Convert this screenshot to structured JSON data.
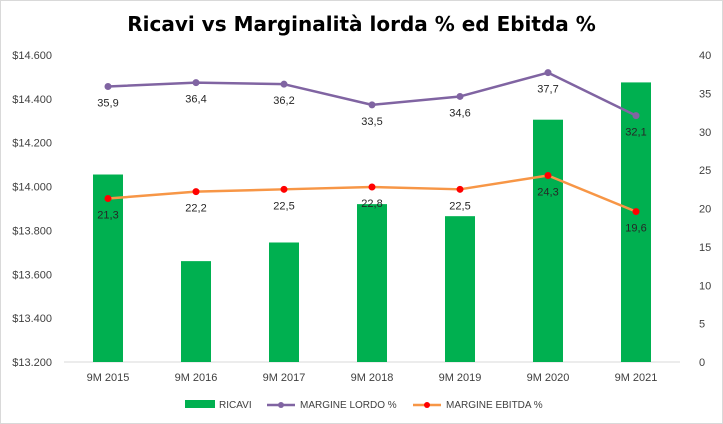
{
  "chart_data": {
    "type": "bar",
    "title": "Ricavi vs Marginalità lorda % ed Ebitda %",
    "categories": [
      "9M 2015",
      "9M 2016",
      "9M 2017",
      "9M 2018",
      "9M 2019",
      "9M 2020",
      "9M 2021"
    ],
    "primary_axis": {
      "ylim": [
        13200,
        14600
      ],
      "ticks": [
        {
          "value": 13200,
          "label": "$13.200"
        },
        {
          "value": 13400,
          "label": "$13.400"
        },
        {
          "value": 13600,
          "label": "$13.600"
        },
        {
          "value": 13800,
          "label": "$13.800"
        },
        {
          "value": 14000,
          "label": "$14.000"
        },
        {
          "value": 14200,
          "label": "$14.200"
        },
        {
          "value": 14400,
          "label": "$14.400"
        },
        {
          "value": 14600,
          "label": "$14.600"
        }
      ]
    },
    "secondary_axis": {
      "ylim": [
        0,
        40
      ],
      "ticks": [
        {
          "value": 0,
          "label": "0"
        },
        {
          "value": 5,
          "label": "5"
        },
        {
          "value": 10,
          "label": "10"
        },
        {
          "value": 15,
          "label": "15"
        },
        {
          "value": 20,
          "label": "20"
        },
        {
          "value": 25,
          "label": "25"
        },
        {
          "value": 30,
          "label": "30"
        },
        {
          "value": 35,
          "label": "35"
        },
        {
          "value": 40,
          "label": "40"
        }
      ]
    },
    "series": [
      {
        "name": "RICAVI",
        "type": "bar",
        "axis": "primary",
        "color": "#00b050",
        "values": [
          14055,
          13660,
          13745,
          13920,
          13865,
          14305,
          14475
        ]
      },
      {
        "name": "MARGINE LORDO %",
        "type": "line",
        "axis": "secondary",
        "color": "#8064a2",
        "values": [
          35.9,
          36.4,
          36.2,
          33.5,
          34.6,
          37.7,
          32.1
        ],
        "labels": [
          "35,9",
          "36,4",
          "36,2",
          "33,5",
          "34,6",
          "37,7",
          "32,1"
        ]
      },
      {
        "name": "MARGINE EBITDA %",
        "type": "line",
        "axis": "secondary",
        "color": "#f79646",
        "marker_color": "#ff0000",
        "values": [
          21.3,
          22.2,
          22.5,
          22.8,
          22.5,
          24.3,
          19.6
        ],
        "labels": [
          "21,3",
          "22,2",
          "22,5",
          "22,8",
          "22,5",
          "24,3",
          "19,6"
        ]
      }
    ],
    "legend_position": "bottom",
    "grid": false
  }
}
